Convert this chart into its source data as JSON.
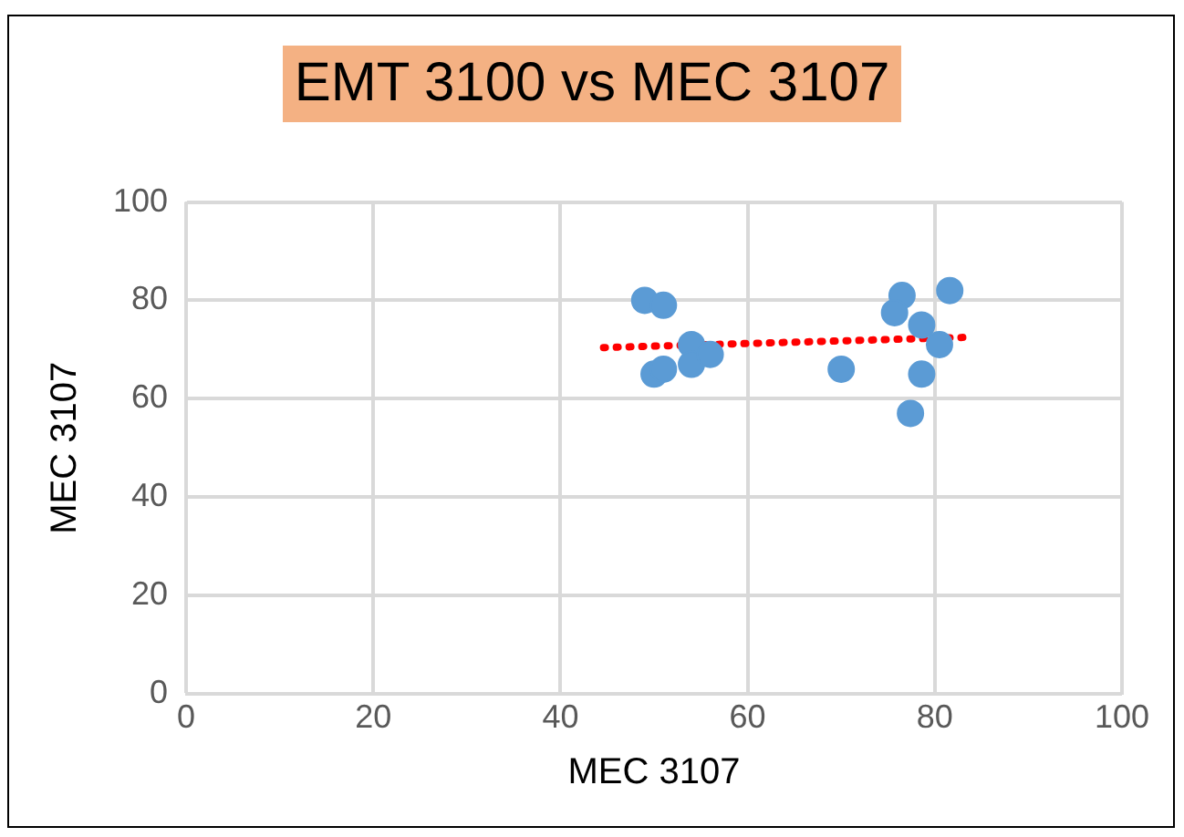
{
  "chart_data": {
    "type": "scatter",
    "title": "EMT 3100 vs MEC 3107",
    "xlabel": "MEC 3107",
    "ylabel": "MEC 3107",
    "xlim": [
      0,
      100
    ],
    "xticks": [
      0,
      20,
      40,
      60,
      80,
      100
    ],
    "ylim": [
      0,
      100
    ],
    "yticks": [
      0,
      20,
      40,
      60,
      80,
      100
    ],
    "grid": true,
    "legend": false,
    "marker": "circle",
    "series": [
      {
        "color": "#5b9bd5",
        "x": [
          49,
          51,
          50,
          51,
          54,
          54,
          56,
          70,
          76.5,
          75.7,
          78.6,
          80.5,
          78.6,
          77.4,
          81.6
        ],
        "values": [
          80,
          79,
          65,
          66,
          71,
          67,
          69,
          66,
          81,
          77.5,
          75,
          71,
          65,
          57,
          82
        ]
      },
      {
        "type": "line",
        "color": "#ff0000",
        "line_style": "dotted",
        "marker": "none",
        "x": [
          44.6,
          83.7
        ],
        "values": [
          70.4,
          72.5
        ]
      }
    ]
  }
}
